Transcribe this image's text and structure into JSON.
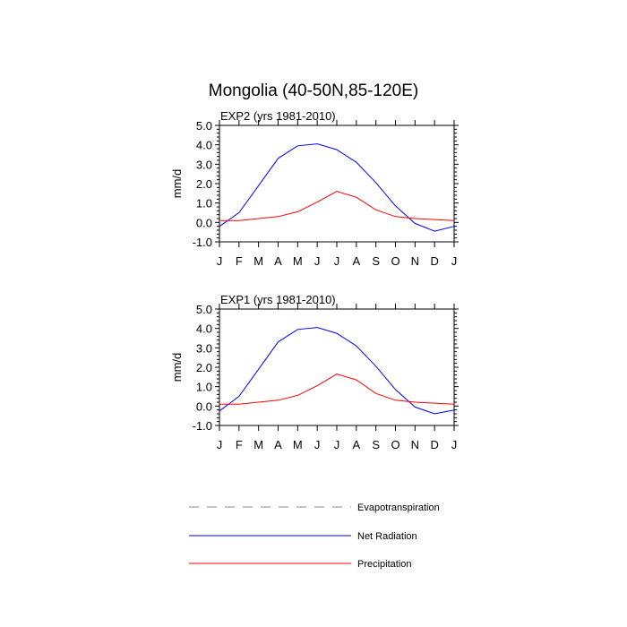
{
  "page": {
    "title": "Mongolia (40-50N,85-120E)"
  },
  "colors": {
    "evapotranspiration": "#888888",
    "net_radiation": "#0000ff",
    "precipitation": "#ff0000",
    "axis": "#000000"
  },
  "chart_data": [
    {
      "type": "line",
      "title": "EXP2 (yrs 1981-2010)",
      "ylabel": "mm/d",
      "xlabel": "",
      "categories": [
        "J",
        "F",
        "M",
        "A",
        "M",
        "J",
        "J",
        "A",
        "S",
        "O",
        "N",
        "D",
        "J"
      ],
      "yticks": [
        "5.0",
        "4.0",
        "3.0",
        "2.0",
        "1.0",
        "0.0",
        "-1.0"
      ],
      "ylim": [
        -1.0,
        5.0
      ],
      "series": [
        {
          "name": "Net Radiation",
          "values": [
            -0.2,
            0.5,
            1.9,
            3.3,
            3.95,
            4.05,
            3.75,
            3.1,
            2.05,
            0.85,
            -0.05,
            -0.45,
            -0.2
          ]
        },
        {
          "name": "Precipitation",
          "values": [
            0.1,
            0.1,
            0.2,
            0.3,
            0.55,
            1.05,
            1.6,
            1.3,
            0.65,
            0.3,
            0.2,
            0.15,
            0.1
          ]
        }
      ]
    },
    {
      "type": "line",
      "title": "EXP1 (yrs 1981-2010)",
      "ylabel": "mm/d",
      "xlabel": "",
      "categories": [
        "J",
        "F",
        "M",
        "A",
        "M",
        "J",
        "J",
        "A",
        "S",
        "O",
        "N",
        "D",
        "J"
      ],
      "yticks": [
        "5.0",
        "4.0",
        "3.0",
        "2.0",
        "1.0",
        "0.0",
        "-1.0"
      ],
      "ylim": [
        -1.0,
        5.0
      ],
      "series": [
        {
          "name": "Net Radiation",
          "values": [
            -0.25,
            0.5,
            1.9,
            3.3,
            3.95,
            4.05,
            3.75,
            3.1,
            2.05,
            0.85,
            -0.05,
            -0.4,
            -0.2
          ]
        },
        {
          "name": "Precipitation",
          "values": [
            0.1,
            0.1,
            0.2,
            0.3,
            0.55,
            1.05,
            1.65,
            1.35,
            0.65,
            0.3,
            0.2,
            0.15,
            0.1
          ]
        }
      ]
    }
  ],
  "legend": [
    {
      "label": "Evapotranspiration",
      "style": "dashed",
      "color": "#888888"
    },
    {
      "label": "Net Radiation",
      "style": "solid",
      "color": "#0000ff"
    },
    {
      "label": "Precipitation",
      "style": "solid",
      "color": "#ff0000"
    }
  ]
}
